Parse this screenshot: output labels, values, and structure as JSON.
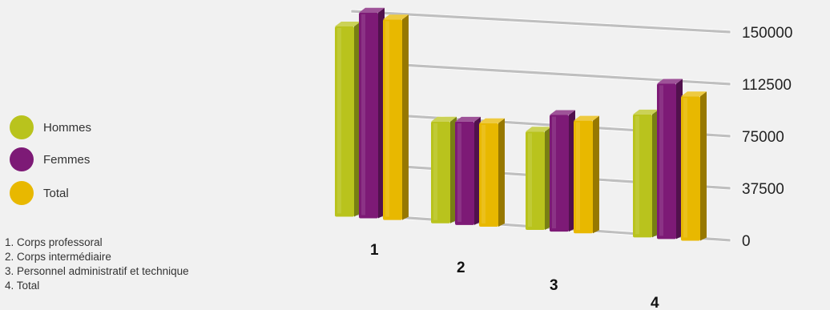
{
  "chart_data": {
    "type": "bar",
    "categories": [
      "1",
      "2",
      "3",
      "4"
    ],
    "series": [
      {
        "name": "Hommes",
        "color": "#b9c31d",
        "values": [
          141000,
          76000,
          73000,
          90000
        ]
      },
      {
        "name": "Femmes",
        "color": "#7d1a76",
        "values": [
          152000,
          77000,
          86000,
          113000
        ]
      },
      {
        "name": "Total",
        "color": "#e8b800",
        "values": [
          148000,
          77000,
          83000,
          105000
        ]
      }
    ],
    "ylim": [
      0,
      150000
    ],
    "yticks": [
      "0",
      "37500",
      "75000",
      "112500",
      "150000"
    ],
    "grid": true,
    "legend_position": "left",
    "notes": [
      {
        "num": "1",
        "text": "Corps professoral"
      },
      {
        "num": "2",
        "text": "Corps intermédiaire"
      },
      {
        "num": "3",
        "text": "Personnel administratif et technique"
      },
      {
        "num": "4",
        "text": "Total"
      }
    ]
  }
}
